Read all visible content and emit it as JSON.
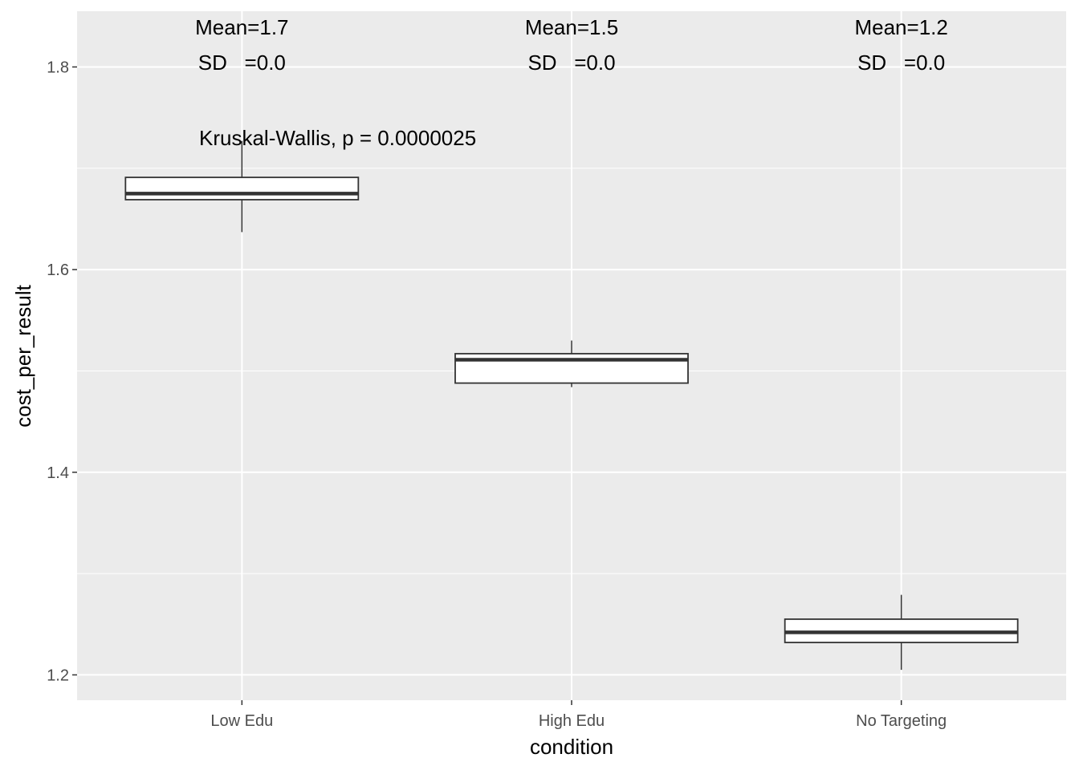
{
  "chart_data": {
    "type": "boxplot",
    "xlabel": "condition",
    "ylabel": "cost_per_result",
    "ylim": [
      1.175,
      1.855
    ],
    "y_ticks": [
      "1.2",
      "1.4",
      "1.6",
      "1.8"
    ],
    "y_tick_values": [
      1.2,
      1.4,
      1.6,
      1.8
    ],
    "y_minor_tick_values": [
      1.3,
      1.5,
      1.7
    ],
    "grid": true,
    "background": "#EBEBEB",
    "categories": [
      "Low Edu",
      "High Edu",
      "No Targeting"
    ],
    "boxes": [
      {
        "category": "Low Edu",
        "min": 1.637,
        "q1": 1.669,
        "median": 1.675,
        "q3": 1.691,
        "max": 1.727
      },
      {
        "category": "High Edu",
        "min": 1.484,
        "q1": 1.488,
        "median": 1.511,
        "q3": 1.517,
        "max": 1.53
      },
      {
        "category": "No Targeting",
        "min": 1.205,
        "q1": 1.232,
        "median": 1.242,
        "q3": 1.255,
        "max": 1.279
      }
    ],
    "annotations": {
      "stats": [
        {
          "category": "Low Edu",
          "mean": "Mean=1.7",
          "sd": "SD   =0.0"
        },
        {
          "category": "High Edu",
          "mean": "Mean=1.5",
          "sd": "SD   =0.0"
        },
        {
          "category": "No Targeting",
          "mean": "Mean=1.2",
          "sd": "SD   =0.0"
        }
      ],
      "test": "Kruskal-Wallis, p = 0.0000025",
      "test_y": 1.73
    }
  }
}
